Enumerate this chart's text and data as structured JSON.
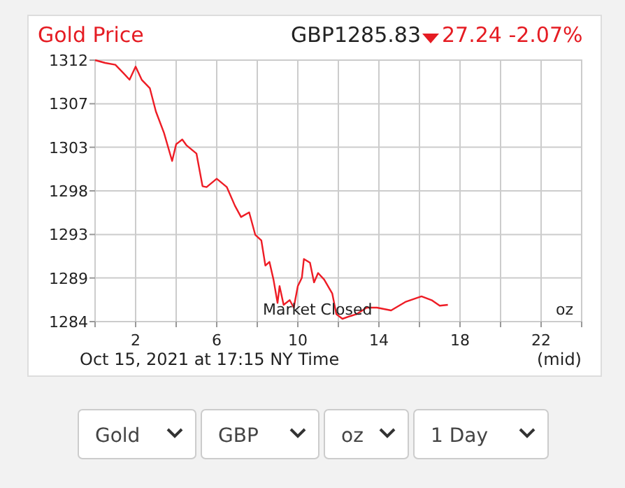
{
  "chart_data": {
    "type": "line",
    "title": "Gold Price",
    "subtitle": "GBP1285.83",
    "annotations": [
      "27.24 -2.07%",
      "Market Closed",
      "oz",
      "Oct 15, 2021 at 17:15 NY Time",
      "(mid)",
      "Gold",
      "GBP",
      "oz",
      "1 Day"
    ],
    "x": [
      0,
      0.5,
      1.0,
      1.4,
      1.7,
      2.0,
      2.3,
      2.7,
      3.0,
      3.4,
      3.8,
      4.0,
      4.3,
      4.5,
      5.0,
      5.3,
      5.5,
      6.0,
      6.5,
      6.9,
      7.2,
      7.6,
      7.9,
      8.2,
      8.4,
      8.6,
      8.8,
      9.0,
      9.1,
      9.3,
      9.6,
      9.8,
      10.0,
      10.2,
      10.3,
      10.6,
      10.8,
      11.0,
      11.3,
      11.7,
      11.9,
      12.2,
      12.6,
      12.9,
      13.4,
      13.9,
      14.6,
      15.3,
      16.1,
      16.6,
      17.0,
      17.4
    ],
    "series": [
      {
        "color": "#ee1c25",
        "values": [
          1312,
          1311.7,
          1311.5,
          1310.6,
          1309.9,
          1311.3,
          1309.9,
          1309.0,
          1306.5,
          1304.2,
          1301.2,
          1303.0,
          1303.5,
          1302.9,
          1302.0,
          1298.5,
          1298.4,
          1299.3,
          1298.4,
          1296.4,
          1295.2,
          1295.7,
          1293.3,
          1292.7,
          1290.0,
          1290.4,
          1288.5,
          1286.0,
          1287.8,
          1285.8,
          1286.3,
          1285.5,
          1287.8,
          1288.7,
          1290.7,
          1290.3,
          1288.2,
          1289.2,
          1288.5,
          1287.0,
          1284.8,
          1284.3,
          1284.6,
          1284.8,
          1285.5,
          1285.5,
          1285.2,
          1286.1,
          1286.7,
          1286.3,
          1285.7,
          1285.8
        ]
      }
    ],
    "xlim": [
      0,
      24
    ],
    "xticks": [
      {
        "value": 0,
        "label": null
      },
      2,
      {
        "value": 4,
        "label": null
      },
      6,
      {
        "value": 8,
        "label": null
      },
      10,
      {
        "value": 12,
        "label": null
      },
      14,
      {
        "value": 16,
        "label": null
      },
      18,
      {
        "value": 20,
        "label": null
      },
      22,
      {
        "value": 24,
        "label": null
      }
    ],
    "ylim": [
      1284,
      1312
    ],
    "yticks": [
      1284,
      {
        "value": 1288.67,
        "label": "1289"
      },
      {
        "value": 1293.33,
        "label": "1293"
      },
      1298,
      {
        "value": 1302.67,
        "label": "1303"
      },
      {
        "value": 1307.33,
        "label": "1307"
      },
      1312
    ],
    "grid": true,
    "marker": "none",
    "line_style": "solid"
  }
}
